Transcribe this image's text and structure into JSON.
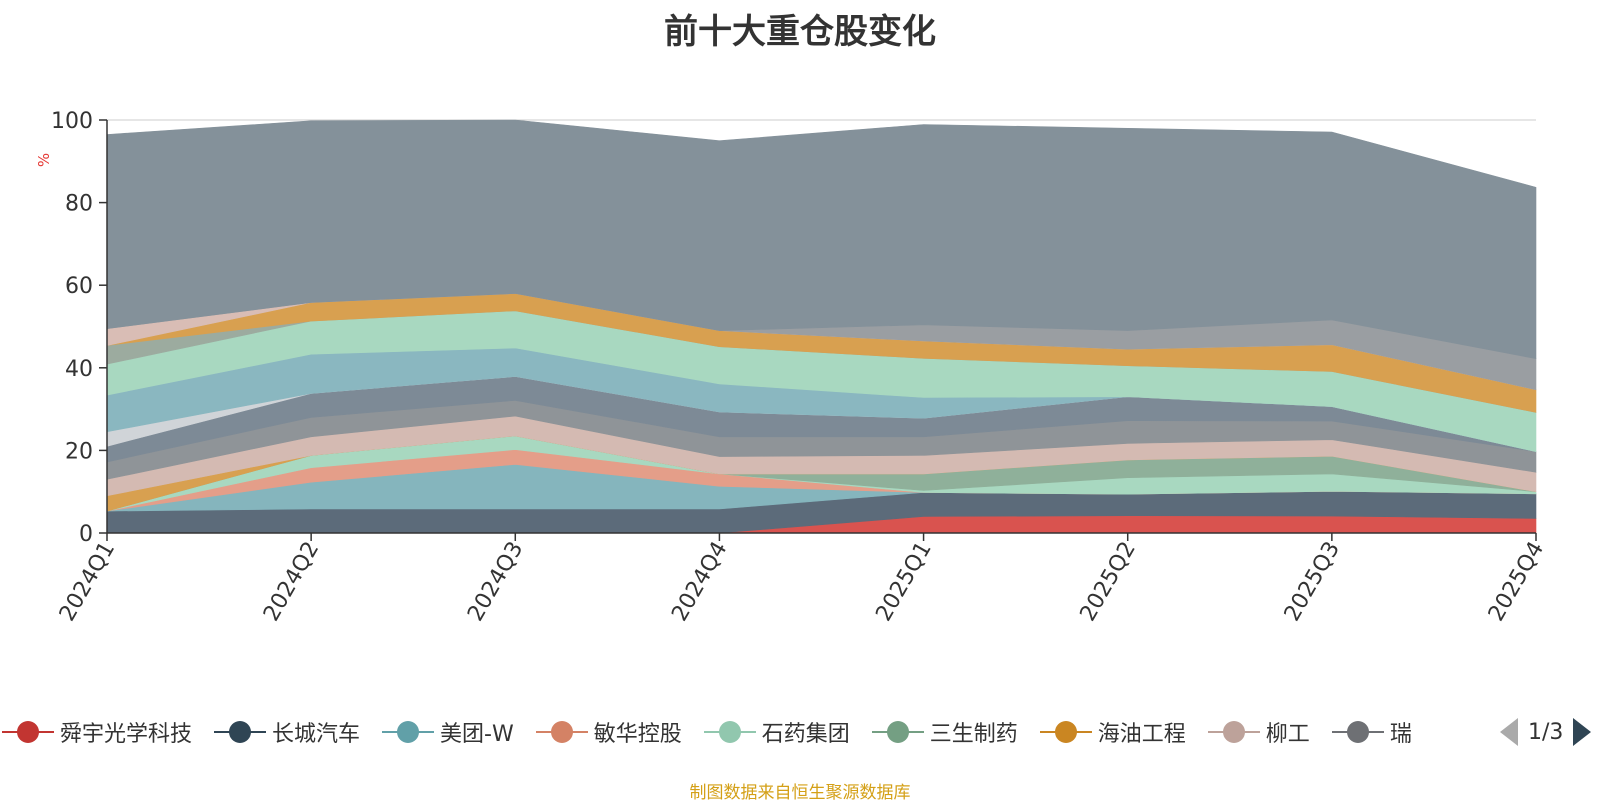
{
  "title": "前十大重仓股变化",
  "source": "制图数据来自恒生聚源数据库",
  "pager": {
    "text": "1/3"
  },
  "legend": [
    {
      "name": "舜宇光学科技",
      "color": "#c23531"
    },
    {
      "name": "长城汽车",
      "color": "#2f4554"
    },
    {
      "name": "美团-W",
      "color": "#61a0a8"
    },
    {
      "name": "敏华控股",
      "color": "#d48265"
    },
    {
      "name": "石药集团",
      "color": "#91c7ae"
    },
    {
      "name": "三生制药",
      "color": "#749f83"
    },
    {
      "name": "海油工程",
      "color": "#ca8622"
    },
    {
      "name": "柳工",
      "color": "#bda29a"
    },
    {
      "name": "瑞",
      "color": "#6e7074"
    }
  ],
  "chart_data": {
    "type": "area",
    "stacked": true,
    "title": "前十大重仓股变化",
    "ylabel": "%",
    "ylim": [
      0,
      100
    ],
    "yticks": [
      0,
      20,
      40,
      60,
      80,
      100
    ],
    "categories": [
      "2024Q1",
      "2024Q2",
      "2024Q3",
      "2024Q4",
      "2025Q1",
      "2025Q2",
      "2025Q3",
      "2025Q4"
    ],
    "series": [
      {
        "color": "#d9534f",
        "values": [
          0,
          0,
          0,
          0,
          4.0,
          4.2,
          4.1,
          3.5
        ]
      },
      {
        "color": "#5c6b7a",
        "values": [
          5.3,
          5.8,
          5.8,
          5.8,
          5.8,
          5.2,
          6.0,
          6.0
        ]
      },
      {
        "color": "#85b5bd",
        "values": [
          0,
          6.5,
          10.8,
          5.5,
          0,
          0,
          0,
          0
        ]
      },
      {
        "color": "#e49e89",
        "values": [
          0,
          3.5,
          3.6,
          3.0,
          0,
          0,
          0,
          0
        ]
      },
      {
        "color": "#a8d8c0",
        "values": [
          0,
          3.0,
          3.3,
          0,
          0.5,
          4.0,
          4.2,
          0.5
        ]
      },
      {
        "color": "#8fb09a",
        "values": [
          0,
          0,
          0,
          0,
          4.0,
          4.3,
          4.3,
          0
        ]
      },
      {
        "color": "#d8a050",
        "values": [
          3.7,
          0,
          0,
          0,
          0,
          0,
          0,
          0
        ]
      },
      {
        "color": "#d4bab2",
        "values": [
          4.0,
          4.5,
          4.8,
          4.2,
          4.5,
          4.0,
          4.0,
          4.7
        ]
      },
      {
        "color": "#8f9498",
        "values": [
          4.2,
          4.7,
          3.8,
          4.8,
          4.5,
          5.5,
          4.5,
          5.0
        ]
      },
      {
        "color": "#7d8a96",
        "values": [
          3.8,
          5.8,
          5.8,
          6.0,
          4.5,
          5.8,
          3.5,
          0
        ]
      },
      {
        "color": "#d0d4d8",
        "values": [
          3.5,
          0,
          0,
          0,
          0,
          0,
          0,
          0
        ]
      },
      {
        "color": "#8ab7c0",
        "values": [
          8.9,
          9.5,
          6.9,
          6.8,
          5.0,
          0,
          0,
          0
        ]
      },
      {
        "color": "#a8d8c0",
        "values": [
          7.5,
          8.0,
          9.0,
          9.0,
          9.5,
          7.5,
          8.5,
          9.5
        ]
      },
      {
        "color": "#9cab9f",
        "values": [
          4.5,
          0,
          0,
          0,
          0,
          0,
          0,
          0
        ]
      },
      {
        "color": "#d8a050",
        "values": [
          0,
          4.5,
          4.2,
          3.9,
          4.2,
          4.0,
          6.5,
          5.5
        ]
      },
      {
        "color": "#d9bdb5",
        "values": [
          4.1,
          0,
          0,
          0,
          0,
          0,
          0,
          0
        ]
      },
      {
        "color": "#9a9ea2",
        "values": [
          0,
          0,
          0,
          0,
          3.9,
          4.5,
          6.0,
          7.5
        ]
      },
      {
        "color": "#84919a",
        "values": [
          47.0,
          44.0,
          42.0,
          46.0,
          48.5,
          49.0,
          45.5,
          41.5
        ]
      }
    ]
  }
}
